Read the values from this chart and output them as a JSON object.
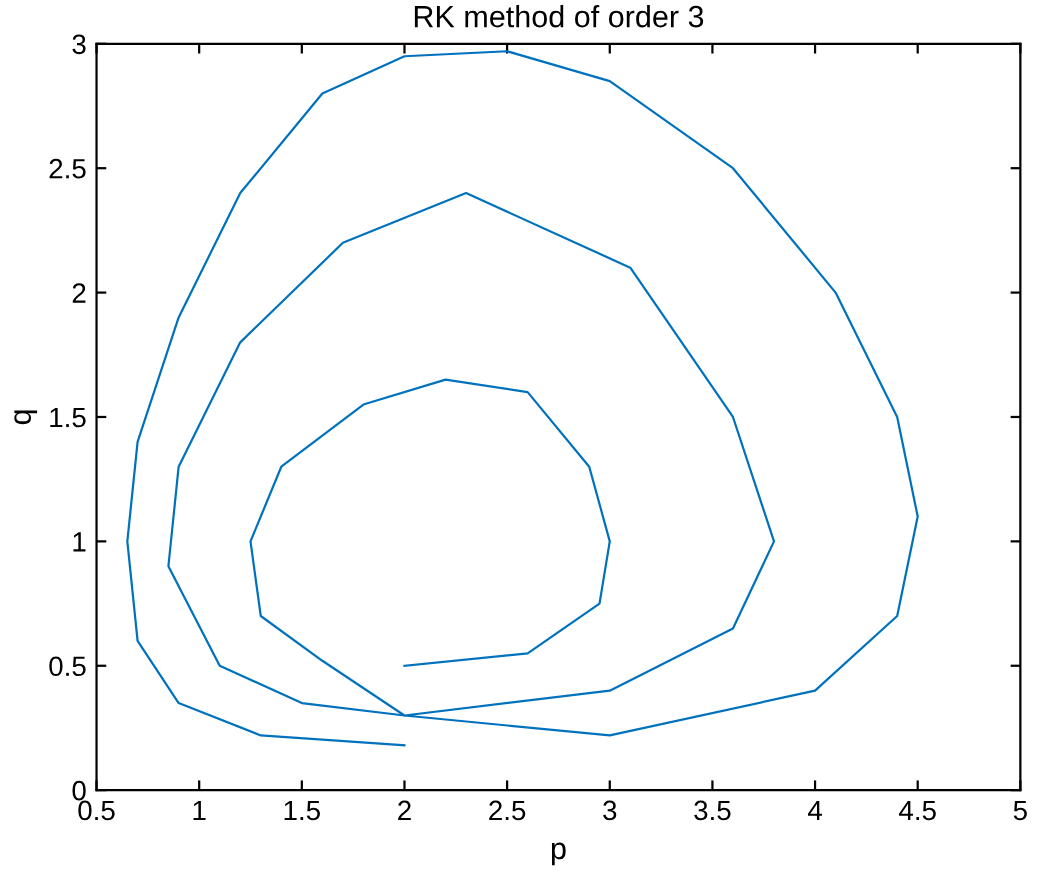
{
  "chart_data": {
    "type": "line",
    "title": "RK method of order 3",
    "xlabel": "p",
    "ylabel": "q",
    "xlim": [
      0.5,
      5
    ],
    "xticks": [
      0.5,
      1,
      1.5,
      2,
      2.5,
      3,
      3.5,
      4,
      4.5,
      5
    ],
    "ylim": [
      0,
      3
    ],
    "yticks": [
      0,
      0.5,
      1,
      1.5,
      2,
      2.5,
      3
    ],
    "grid": false,
    "marker": "none",
    "line_style": "solid",
    "series": [
      {
        "color": "#0072bd",
        "x": [
          2.0,
          2.6,
          2.95,
          3.0,
          2.9,
          2.6,
          2.2,
          1.8,
          1.4,
          1.25,
          1.3,
          1.6,
          2.0,
          3.0,
          3.6,
          3.8,
          3.6,
          3.1,
          2.3,
          1.7,
          1.2,
          0.9,
          0.85,
          1.1,
          1.5,
          2.0,
          3.0,
          4.0,
          4.4,
          4.5,
          4.4,
          4.1,
          3.6,
          3.0,
          2.5,
          2.0,
          1.6,
          1.2,
          0.9,
          0.7,
          0.65,
          0.7,
          0.9,
          1.3,
          2.0
        ],
        "values": [
          0.5,
          0.55,
          0.75,
          1.0,
          1.3,
          1.6,
          1.65,
          1.55,
          1.3,
          1.0,
          0.7,
          0.52,
          0.3,
          0.4,
          0.65,
          1.0,
          1.5,
          2.1,
          2.4,
          2.2,
          1.8,
          1.3,
          0.9,
          0.5,
          0.35,
          0.3,
          0.22,
          0.4,
          0.7,
          1.1,
          1.5,
          2.0,
          2.5,
          2.85,
          2.97,
          2.95,
          2.8,
          2.4,
          1.9,
          1.4,
          1.0,
          0.6,
          0.35,
          0.22,
          0.18
        ]
      }
    ]
  }
}
